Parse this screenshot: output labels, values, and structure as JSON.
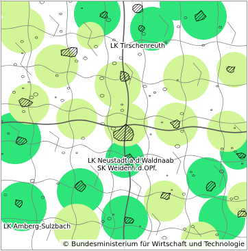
{
  "map": {
    "labels": [
      {
        "id": "tirschenreuth",
        "text": "LK Tirschenreuth"
      },
      {
        "id": "neustadt",
        "text": "LK Neustadt a.d.Waldnaab"
      },
      {
        "id": "weiden",
        "text": "SK Weiden i.d.OPf."
      },
      {
        "id": "amberg",
        "text": "LK Amberg-Sulzbach"
      }
    ],
    "copyright": "© Bundesministerium für Wirtschaft und Technologie",
    "colors": {
      "bright_green": "#2ee57a",
      "light_green": "#d2f598",
      "border": "#707070",
      "hatch": "#000000"
    }
  }
}
